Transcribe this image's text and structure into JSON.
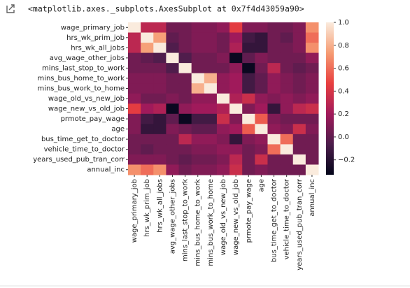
{
  "cell_output": "<matplotlib.axes._subplots.AxesSubplot at 0x7f4d43059a90>",
  "chart_data": {
    "type": "heatmap",
    "categories": [
      "wage_primary_job",
      "hrs_wk_prim_job",
      "hrs_wk_all_jobs",
      "avg_wage_other_jobs",
      "mins_last_stop_to_work",
      "mins_bus_home_to_work",
      "mins_bus_work_to_home",
      "wage_old_vs_new_job",
      "wage_new_vs_old_job",
      "prmote_pay_wage",
      "age",
      "bus_time_get_to_doctor",
      "vehicle_time_to_doctor",
      "years_used_pub_tran_corr",
      "annual_inc"
    ],
    "matrix": [
      [
        1,
        0.3,
        0.3,
        0.05,
        0.05,
        0.1,
        0.1,
        0.15,
        0.45,
        0.1,
        0.1,
        0.05,
        0.05,
        0.1,
        0.7
      ],
      [
        0.3,
        1,
        0.75,
        0,
        0.05,
        0.1,
        0.1,
        0.05,
        0.2,
        -0.1,
        -0.15,
        0.05,
        0,
        0.1,
        0.6
      ],
      [
        0.3,
        0.75,
        1,
        -0.05,
        0.05,
        0.1,
        0.1,
        0.05,
        0.25,
        -0.15,
        -0.15,
        0.05,
        0.05,
        0.1,
        0.7
      ],
      [
        0.05,
        0,
        -0.05,
        1,
        -0.05,
        0.05,
        0.05,
        0.1,
        -0.3,
        0,
        0.1,
        0.05,
        0.05,
        0.05,
        0.15
      ],
      [
        0.05,
        0.05,
        0.05,
        -0.05,
        1,
        0.05,
        0.05,
        0.05,
        0.15,
        -0.3,
        0.05,
        0.3,
        0.05,
        0,
        0.05
      ],
      [
        0.1,
        0.1,
        0.1,
        0.05,
        0.05,
        1,
        0.8,
        0.15,
        0.2,
        -0.1,
        0,
        0.15,
        0.1,
        0.05,
        0.1
      ],
      [
        0.1,
        0.1,
        0.1,
        0.05,
        0.05,
        0.8,
        1,
        0.15,
        0.2,
        -0.1,
        0,
        0.15,
        0.1,
        0.05,
        0.1
      ],
      [
        0.15,
        0.05,
        0.05,
        0.1,
        0.05,
        0.15,
        0.15,
        1,
        0.25,
        0.35,
        0.15,
        0.1,
        0.15,
        0.1,
        0.15
      ],
      [
        0.45,
        0.2,
        0.25,
        -0.3,
        0.15,
        0.2,
        0.2,
        0.25,
        1,
        0.1,
        0.2,
        -0.15,
        0.15,
        0.3,
        0.35
      ],
      [
        0.1,
        -0.1,
        -0.15,
        0,
        -0.3,
        -0.1,
        -0.1,
        0.35,
        0.1,
        1,
        0.55,
        0.1,
        0.05,
        0.05,
        0.05
      ],
      [
        0.1,
        -0.15,
        -0.15,
        0.1,
        0.05,
        0,
        0,
        0.15,
        0.2,
        0.55,
        1,
        0.15,
        0.1,
        0.35,
        0.1
      ],
      [
        0.05,
        0.05,
        0.05,
        0.05,
        0.3,
        0.15,
        0.15,
        0.1,
        -0.15,
        0.1,
        0.15,
        1,
        0.6,
        0.05,
        0.05
      ],
      [
        0.05,
        0,
        0.05,
        0.05,
        0.05,
        0.1,
        0.1,
        0.15,
        0.15,
        0.05,
        0.1,
        0.6,
        1,
        0.05,
        0.05
      ],
      [
        0.1,
        0.1,
        0.1,
        0.05,
        0,
        0.05,
        0.05,
        0.1,
        0.3,
        0.05,
        0.35,
        0.05,
        0.05,
        1,
        0.05
      ],
      [
        0.7,
        0.6,
        0.7,
        0.15,
        0.05,
        0.1,
        0.1,
        0.15,
        0.35,
        0.05,
        0.1,
        0.05,
        0.05,
        0.05,
        1
      ]
    ],
    "colormap": "rocket",
    "zlim": [
      -0.33,
      1.0
    ],
    "zticks": [
      {
        "value": -0.2,
        "label": "−0.2"
      },
      {
        "value": 0,
        "label": "0.0"
      },
      0.2,
      0.4,
      0.6,
      0.8,
      {
        "value": 1,
        "label": "1.0"
      }
    ]
  }
}
